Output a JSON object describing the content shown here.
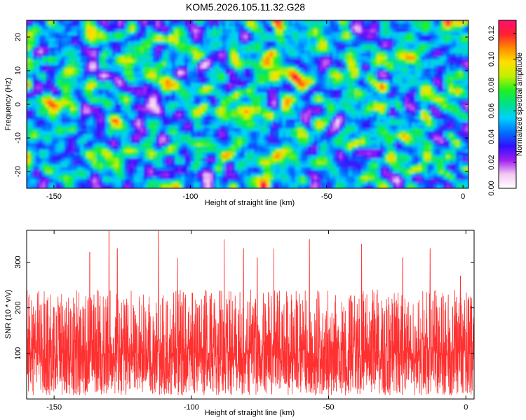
{
  "figure_title": "KOM5.2026.105.11.32.G28",
  "chart_data": [
    {
      "type": "heatmap",
      "title": "KOM5.2026.105.11.32.G28",
      "xlabel": "Height of straight line (km)",
      "ylabel": "Frequency (Hz)",
      "xlim": [
        -160,
        2
      ],
      "ylim": [
        -25,
        25
      ],
      "xticks": [
        -150,
        -100,
        -50,
        0
      ],
      "xtick_labels": [
        "-150",
        "-100",
        "-50",
        "0"
      ],
      "yticks": [
        -20,
        -10,
        0,
        10,
        20
      ],
      "ytick_labels": [
        "-20",
        "-10",
        "0",
        "10",
        "20"
      ],
      "colorbar": {
        "label": "Normalized spectral amplitude",
        "range": [
          0,
          0.13
        ],
        "ticks": [
          0.0,
          0.02,
          0.04,
          0.06,
          0.08,
          0.1,
          0.12
        ],
        "tick_labels": [
          "0.00",
          "0.02",
          "0.04",
          "0.06",
          "0.08",
          "0.10",
          "0.12"
        ],
        "colormap": [
          "#ffffff",
          "#f2c9f2",
          "#a020f0",
          "#3010ff",
          "#0070ff",
          "#00d0ff",
          "#00e08c",
          "#20f020",
          "#c0f000",
          "#ffe000",
          "#ff8c00",
          "#ff2030",
          "#ff1070"
        ]
      },
      "typical_value": 0.03,
      "max_value": 0.13
    },
    {
      "type": "line",
      "title": "",
      "xlabel": "Height of straight line (km)",
      "ylabel": "SNR (10 * v/v)",
      "xlim": [
        -160,
        3
      ],
      "ylim": [
        0,
        370
      ],
      "xticks": [
        -150,
        -100,
        -50,
        0
      ],
      "xtick_labels": [
        "-150",
        "-100",
        "-50",
        "0"
      ],
      "yticks": [
        100,
        200,
        300
      ],
      "ytick_labels": [
        "100",
        "200",
        "300"
      ],
      "series": [
        {
          "name": "SNR",
          "color": "#ff3030",
          "baseline": 100,
          "typical_range": [
            40,
            180
          ],
          "peaks": [
            {
              "x": -150,
              "y": 200
            },
            {
              "x": -137,
              "y": 322
            },
            {
              "x": -130,
              "y": 368
            },
            {
              "x": -127,
              "y": 330
            },
            {
              "x": -112,
              "y": 368
            },
            {
              "x": -105,
              "y": 310
            },
            {
              "x": -88,
              "y": 350
            },
            {
              "x": -81,
              "y": 330
            },
            {
              "x": -76,
              "y": 310
            },
            {
              "x": -70,
              "y": 330
            },
            {
              "x": -57,
              "y": 350
            },
            {
              "x": -38,
              "y": 340
            },
            {
              "x": -23,
              "y": 310
            },
            {
              "x": -13,
              "y": 330
            },
            {
              "x": -2,
              "y": 270
            }
          ]
        }
      ]
    }
  ]
}
